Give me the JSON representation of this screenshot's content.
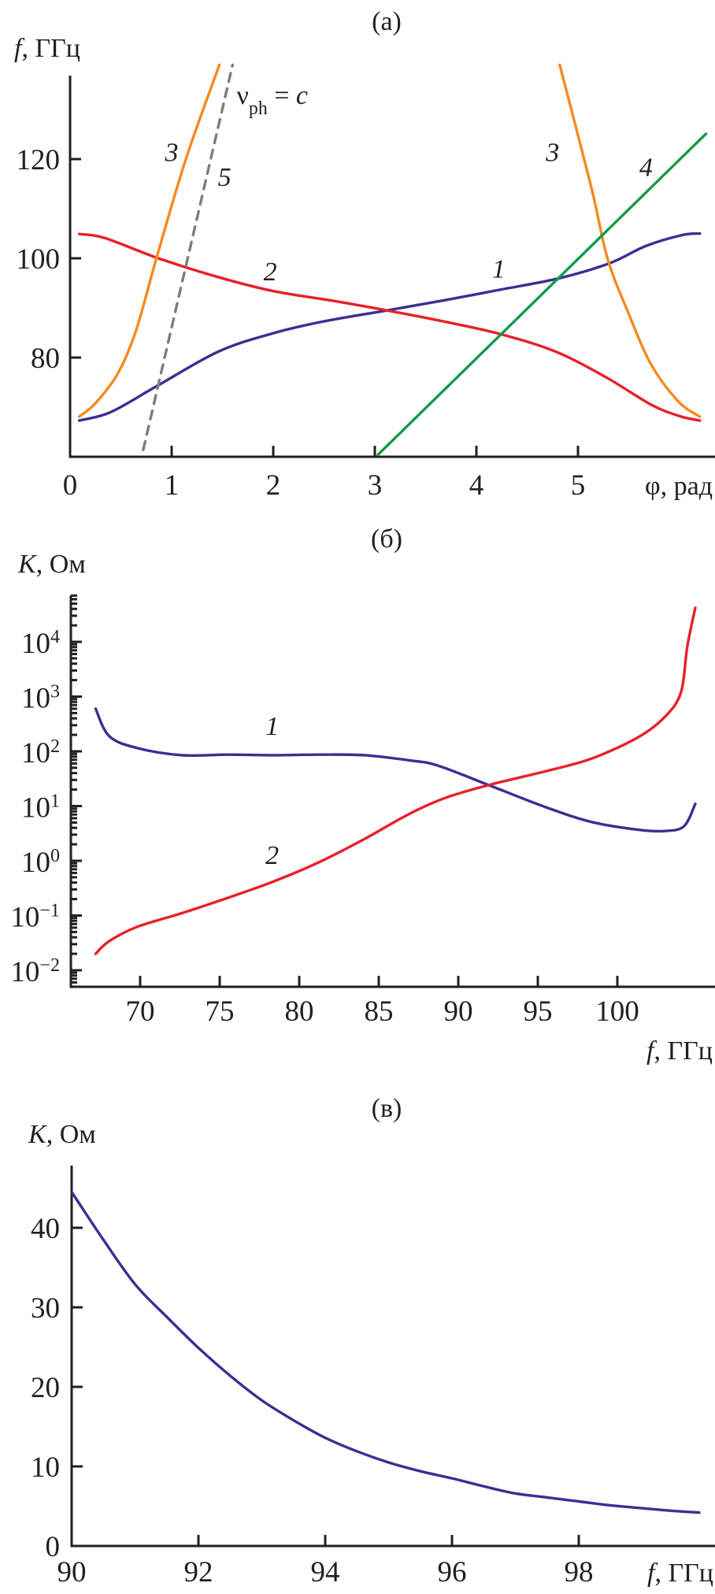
{
  "colors": {
    "curve1": "#3b2f93",
    "curve2": "#e8202a",
    "curve3": "#f7891f",
    "curve4": "#13994a",
    "curve5": "#7d7d7d",
    "axis": "#231f20"
  },
  "chart_data": [
    {
      "panel": "(a)",
      "type": "line",
      "xlabel_parts": [
        "φ",
        ", рад"
      ],
      "ylabel_parts": [
        "f",
        ", ГГц"
      ],
      "xlim": [
        0,
        6.34
      ],
      "ylim": [
        60,
        137
      ],
      "xticks": [
        0,
        1,
        2,
        3,
        4,
        5
      ],
      "yticks": [
        80,
        100,
        120
      ],
      "grid": false,
      "series": [
        {
          "label": "1",
          "color_key": "curve1",
          "style": "solid",
          "points": [
            [
              0.09,
              67.3
            ],
            [
              0.4,
              69
            ],
            [
              0.85,
              74.2
            ],
            [
              1.46,
              81.2
            ],
            [
              2.0,
              84.9
            ],
            [
              2.5,
              87.3
            ],
            [
              3.12,
              89.5
            ],
            [
              3.7,
              91.6
            ],
            [
              4.24,
              93.7
            ],
            [
              4.82,
              96
            ],
            [
              5.31,
              99
            ],
            [
              5.67,
              102.5
            ],
            [
              6.03,
              104.7
            ],
            [
              6.2,
              105
            ]
          ]
        },
        {
          "label": "2",
          "color_key": "curve2",
          "style": "solid",
          "points": [
            [
              0.09,
              104.9
            ],
            [
              0.34,
              104.1
            ],
            [
              0.87,
              100
            ],
            [
              1.46,
              96.2
            ],
            [
              2.0,
              93.4
            ],
            [
              2.6,
              91.4
            ],
            [
              3.12,
              89.5
            ],
            [
              3.79,
              86.8
            ],
            [
              4.26,
              84.6
            ],
            [
              4.78,
              81.2
            ],
            [
              5.27,
              76.1
            ],
            [
              5.72,
              70.5
            ],
            [
              6.0,
              68.2
            ],
            [
              6.2,
              67.3
            ]
          ]
        },
        {
          "label": "3",
          "color_key": "curve3",
          "style": "solid",
          "points": [
            [
              0.09,
              68.1
            ],
            [
              0.25,
              70.8
            ],
            [
              0.47,
              76.8
            ],
            [
              0.65,
              85.5
            ],
            [
              0.85,
              100
            ],
            [
              1.14,
              120
            ],
            [
              1.47,
              139
            ]
          ]
        },
        {
          "label": "3",
          "color_key": "curve3",
          "style": "solid",
          "points": [
            [
              4.82,
              139
            ],
            [
              5.13,
              114.4
            ],
            [
              5.29,
              100
            ],
            [
              5.49,
              89.3
            ],
            [
              5.72,
              78.6
            ],
            [
              5.99,
              71.1
            ],
            [
              6.2,
              68.1
            ]
          ]
        },
        {
          "label": "4",
          "color_key": "curve4",
          "style": "solid",
          "points": [
            [
              3.03,
              60.4
            ],
            [
              6.26,
              125.1
            ]
          ]
        },
        {
          "label": "5",
          "color_key": "curve5",
          "style": "dashed",
          "points": [
            [
              0.72,
              61.4
            ],
            [
              1.6,
              139
            ]
          ]
        }
      ],
      "annotations": [
        {
          "text": "3",
          "x": 1.0,
          "y": 121.5
        },
        {
          "text": "5",
          "x": 1.52,
          "y": 116.5
        },
        {
          "text": "2",
          "x": 1.97,
          "y": 97.5
        },
        {
          "text": "1",
          "x": 4.22,
          "y": 98
        },
        {
          "text": "3",
          "x": 4.75,
          "y": 121.5
        },
        {
          "text": "4",
          "x": 5.67,
          "y": 118.5
        }
      ],
      "vph_label_parts": [
        "ν",
        "ph",
        " = ",
        "c"
      ]
    },
    {
      "panel": "(б)",
      "type": "line",
      "xlabel_parts": [
        "f",
        ", ГГц"
      ],
      "ylabel_parts": [
        "K",
        ", Ом"
      ],
      "xlim": [
        65.6,
        106.1
      ],
      "ylim": [
        0.005,
        70000
      ],
      "yscale": "log",
      "xticks": [
        70,
        75,
        80,
        85,
        90,
        95,
        100
      ],
      "yticks_exp": [
        -2,
        -1,
        0,
        1,
        2,
        3,
        4
      ],
      "grid": false,
      "series": [
        {
          "label": "1",
          "color_key": "curve1",
          "points": [
            [
              67.2,
              600
            ],
            [
              68.05,
              190
            ],
            [
              69.8,
              115
            ],
            [
              72.6,
              85
            ],
            [
              75.5,
              87
            ],
            [
              78.4,
              85
            ],
            [
              81.2,
              87
            ],
            [
              84.1,
              85
            ],
            [
              87,
              68
            ],
            [
              88.7,
              55
            ],
            [
              92.1,
              23
            ],
            [
              95.6,
              9.3
            ],
            [
              98.4,
              5.1
            ],
            [
              101.3,
              3.7
            ],
            [
              103,
              3.5
            ],
            [
              104.2,
              4.3
            ],
            [
              104.9,
              11
            ]
          ]
        },
        {
          "label": "2",
          "color_key": "curve2",
          "points": [
            [
              67.2,
              0.02
            ],
            [
              68.05,
              0.034
            ],
            [
              69.8,
              0.062
            ],
            [
              72.6,
              0.11
            ],
            [
              75.5,
              0.21
            ],
            [
              78.4,
              0.42
            ],
            [
              81.2,
              0.93
            ],
            [
              84.1,
              2.5
            ],
            [
              87,
              7.4
            ],
            [
              89.3,
              14.5
            ],
            [
              92.1,
              25
            ],
            [
              95.6,
              44
            ],
            [
              98.4,
              74
            ],
            [
              101.3,
              180
            ],
            [
              103,
              430
            ],
            [
              104,
              1200
            ],
            [
              104.4,
              8300
            ],
            [
              104.9,
              42000
            ]
          ]
        }
      ],
      "annotations": [
        {
          "text": "1",
          "x": 78.3,
          "y": 300
        },
        {
          "text": "2",
          "x": 78.3,
          "y": 1.3
        }
      ]
    },
    {
      "panel": "(в)",
      "type": "line",
      "xlabel_parts": [
        "f",
        ", ГГц"
      ],
      "ylabel_parts": [
        "K",
        ", Ом"
      ],
      "xlim": [
        90,
        100.15
      ],
      "ylim": [
        0,
        47.8
      ],
      "xticks": [
        90,
        92,
        94,
        96,
        98
      ],
      "yticks": [
        0,
        10,
        20,
        30,
        40
      ],
      "grid": false,
      "series": [
        {
          "color_key": "curve1",
          "points": [
            [
              90,
              44.5
            ],
            [
              90.5,
              38.5
            ],
            [
              91,
              32.9
            ],
            [
              91.5,
              28.8
            ],
            [
              92,
              24.9
            ],
            [
              92.5,
              21.4
            ],
            [
              93,
              18.3
            ],
            [
              93.5,
              15.8
            ],
            [
              94,
              13.6
            ],
            [
              94.5,
              11.9
            ],
            [
              95,
              10.5
            ],
            [
              95.5,
              9.4
            ],
            [
              96,
              8.5
            ],
            [
              96.5,
              7.5
            ],
            [
              97,
              6.6
            ],
            [
              97.5,
              6.1
            ],
            [
              98,
              5.6
            ],
            [
              98.5,
              5.1
            ],
            [
              99,
              4.75
            ],
            [
              99.5,
              4.4
            ],
            [
              99.9,
              4.2
            ]
          ]
        }
      ]
    }
  ]
}
